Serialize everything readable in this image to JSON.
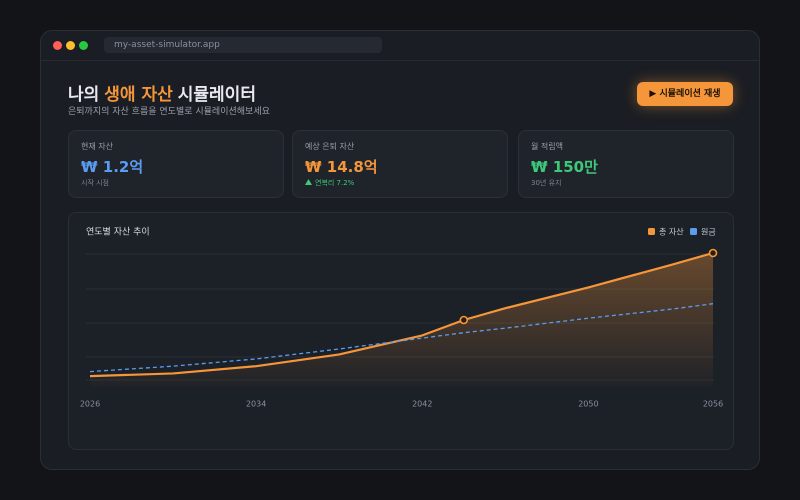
{
  "browser": {
    "url": "my-asset-simulator.app"
  },
  "header": {
    "title_prefix": "나의",
    "title_highlight": "생애 자산",
    "title_suffix": "시뮬레이터",
    "subtitle": "은퇴까지의 자산 흐름을 연도별로 시뮬레이션해보세요",
    "button": "시뮬레이션 재생"
  },
  "cards": [
    {
      "label": "현재 자산",
      "value": "₩ 1.2억",
      "note": "시작 시점"
    },
    {
      "label": "예상 은퇴 자산",
      "value": "₩ 14.8억",
      "note": "연복리 7.2%"
    },
    {
      "label": "월 적립액",
      "value": "₩ 150만",
      "note": "30년 유지"
    }
  ],
  "chart": {
    "type": "line",
    "title": "연도별 자산 추이",
    "x": [
      2026,
      2030,
      2034,
      2038,
      2042,
      2044,
      2046,
      2050,
      2054,
      2056
    ],
    "xlim": [
      2026,
      2056
    ],
    "xticks": [
      2026,
      2034,
      2042,
      2050,
      2056
    ],
    "ylim": [
      0,
      14.8
    ],
    "series": [
      {
        "name": "총 자산",
        "color": "#f5963a",
        "values": [
          1.2,
          1.5,
          2.3,
          3.6,
          5.7,
          7.4,
          8.7,
          11.0,
          13.5,
          14.8
        ]
      },
      {
        "name": "원금",
        "color": "#5b9cf0",
        "values": [
          1.7,
          2.3,
          3.1,
          4.2,
          5.4,
          6.0,
          6.5,
          7.6,
          8.6,
          9.2
        ]
      }
    ]
  }
}
